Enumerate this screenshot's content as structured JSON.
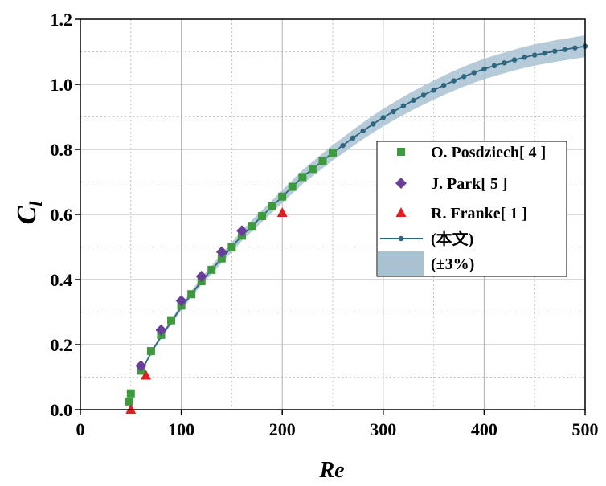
{
  "chart_data": {
    "type": "scatter",
    "title": "",
    "xlabel": "Re",
    "ylabel": "C",
    "ylabel_subscript": "l",
    "xlim": [
      0,
      500
    ],
    "ylim": [
      0,
      1.2
    ],
    "xticks": [
      0,
      100,
      200,
      300,
      400,
      500
    ],
    "yticks": [
      0.0,
      0.2,
      0.4,
      0.6,
      0.8,
      1.0,
      1.2
    ],
    "x_tick_labels": [
      "0",
      "100",
      "200",
      "300",
      "400",
      "500"
    ],
    "y_tick_labels": [
      "0.0",
      "0.2",
      "0.4",
      "0.6",
      "0.8",
      "1.0",
      "1.2"
    ],
    "grid": true,
    "legend_position": "right",
    "series": [
      {
        "name": "O. Posdziech[ 4 ]",
        "marker": "square",
        "color": "#3d9a3d",
        "x": [
          48,
          50,
          60,
          70,
          80,
          90,
          100,
          110,
          120,
          130,
          140,
          150,
          160,
          170,
          180,
          190,
          200,
          210,
          220,
          230,
          240,
          250
        ],
        "y": [
          0.025,
          0.05,
          0.12,
          0.18,
          0.23,
          0.275,
          0.32,
          0.355,
          0.395,
          0.43,
          0.465,
          0.5,
          0.535,
          0.565,
          0.595,
          0.625,
          0.655,
          0.685,
          0.715,
          0.74,
          0.765,
          0.79
        ]
      },
      {
        "name": "J. Park[ 5 ]",
        "marker": "diamond",
        "color": "#6a3d9a",
        "x": [
          60,
          80,
          100,
          120,
          140,
          160
        ],
        "y": [
          0.135,
          0.245,
          0.335,
          0.41,
          0.485,
          0.55
        ]
      },
      {
        "name": "R. Franke[ 1 ]",
        "marker": "triangle",
        "color": "#e02020",
        "x": [
          50,
          65,
          200
        ],
        "y": [
          0.0,
          0.105,
          0.605
        ]
      },
      {
        "name": "(本文)",
        "marker": "line-dot",
        "color": "#2e6680",
        "x": [
          60,
          70,
          80,
          90,
          100,
          110,
          120,
          130,
          140,
          150,
          160,
          170,
          180,
          190,
          200,
          210,
          220,
          230,
          240,
          250,
          260,
          270,
          280,
          290,
          300,
          310,
          320,
          330,
          340,
          350,
          360,
          370,
          380,
          390,
          400,
          410,
          420,
          430,
          440,
          450,
          460,
          470,
          480,
          490,
          500
        ],
        "y": [
          0.115,
          0.175,
          0.225,
          0.27,
          0.315,
          0.355,
          0.395,
          0.43,
          0.465,
          0.5,
          0.535,
          0.565,
          0.595,
          0.625,
          0.655,
          0.685,
          0.715,
          0.74,
          0.765,
          0.79,
          0.812,
          0.835,
          0.857,
          0.878,
          0.898,
          0.916,
          0.934,
          0.951,
          0.967,
          0.982,
          0.997,
          1.011,
          1.024,
          1.036,
          1.047,
          1.057,
          1.066,
          1.075,
          1.083,
          1.09,
          1.096,
          1.102,
          1.107,
          1.112,
          1.117
        ]
      },
      {
        "name": "(±3%)",
        "marker": "band",
        "color": "#a9c2d2",
        "band_percent": 3
      }
    ]
  }
}
